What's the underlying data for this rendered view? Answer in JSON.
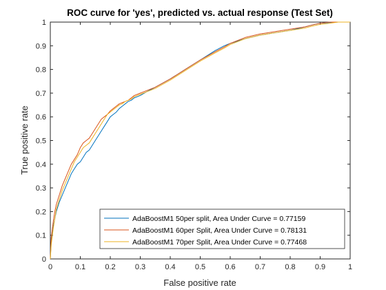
{
  "chart_data": {
    "type": "line",
    "title": "ROC curve for 'yes', predicted vs. actual response (Test Set)",
    "xlabel": "False positive rate",
    "ylabel": "True positive rate",
    "xlim": [
      0,
      1
    ],
    "ylim": [
      0,
      1
    ],
    "xticks": [
      "0",
      "0.1",
      "0.2",
      "0.3",
      "0.4",
      "0.5",
      "0.6",
      "0.7",
      "0.8",
      "0.9",
      "1"
    ],
    "yticks": [
      "0",
      "0.1",
      "0.2",
      "0.3",
      "0.4",
      "0.5",
      "0.6",
      "0.7",
      "0.8",
      "0.9",
      "1"
    ],
    "grid": false,
    "legend_position": "bottom-right",
    "series": [
      {
        "name": "AdaBoostM1 50per split, Area Under Curve =  0.77159",
        "color": "#0072BD",
        "x": [
          0,
          0.003,
          0.006,
          0.01,
          0.015,
          0.02,
          0.03,
          0.04,
          0.05,
          0.06,
          0.07,
          0.08,
          0.09,
          0.1,
          0.11,
          0.12,
          0.13,
          0.14,
          0.15,
          0.16,
          0.17,
          0.18,
          0.19,
          0.2,
          0.21,
          0.22,
          0.23,
          0.24,
          0.25,
          0.26,
          0.27,
          0.28,
          0.29,
          0.3,
          0.32,
          0.35,
          0.4,
          0.45,
          0.5,
          0.55,
          0.58,
          0.6,
          0.65,
          0.7,
          0.75,
          0.8,
          0.85,
          0.88,
          0.9,
          0.93,
          0.96,
          1.0
        ],
        "y": [
          0,
          0.07,
          0.1,
          0.14,
          0.17,
          0.2,
          0.24,
          0.27,
          0.3,
          0.33,
          0.36,
          0.38,
          0.4,
          0.41,
          0.43,
          0.45,
          0.46,
          0.48,
          0.5,
          0.52,
          0.54,
          0.56,
          0.58,
          0.6,
          0.61,
          0.62,
          0.635,
          0.645,
          0.655,
          0.665,
          0.67,
          0.68,
          0.685,
          0.69,
          0.705,
          0.725,
          0.76,
          0.8,
          0.84,
          0.88,
          0.9,
          0.91,
          0.93,
          0.945,
          0.955,
          0.965,
          0.98,
          0.99,
          0.995,
          0.998,
          1.0,
          1.0
        ]
      },
      {
        "name": "AdaBoostM1 60per Split, Area Under Curve =  0.78131",
        "color": "#D95319",
        "x": [
          0,
          0.003,
          0.006,
          0.01,
          0.015,
          0.02,
          0.03,
          0.04,
          0.05,
          0.06,
          0.07,
          0.08,
          0.09,
          0.1,
          0.11,
          0.12,
          0.13,
          0.14,
          0.15,
          0.16,
          0.17,
          0.18,
          0.19,
          0.2,
          0.21,
          0.22,
          0.23,
          0.24,
          0.25,
          0.26,
          0.27,
          0.28,
          0.29,
          0.3,
          0.32,
          0.35,
          0.4,
          0.45,
          0.5,
          0.55,
          0.58,
          0.6,
          0.65,
          0.7,
          0.75,
          0.8,
          0.85,
          0.88,
          0.9,
          0.93,
          0.96,
          1.0
        ],
        "y": [
          0,
          0.09,
          0.12,
          0.16,
          0.2,
          0.23,
          0.27,
          0.31,
          0.34,
          0.37,
          0.4,
          0.42,
          0.44,
          0.47,
          0.49,
          0.5,
          0.51,
          0.53,
          0.55,
          0.57,
          0.59,
          0.6,
          0.61,
          0.625,
          0.635,
          0.645,
          0.655,
          0.66,
          0.665,
          0.67,
          0.68,
          0.69,
          0.695,
          0.7,
          0.71,
          0.725,
          0.76,
          0.8,
          0.84,
          0.875,
          0.895,
          0.91,
          0.935,
          0.95,
          0.96,
          0.97,
          0.98,
          0.99,
          0.995,
          1.0,
          1.0,
          1.0
        ]
      },
      {
        "name": "AdaBoostM1 70per Split, Area Under Curve =  0.77468",
        "color": "#EDB120",
        "x": [
          0,
          0.003,
          0.006,
          0.01,
          0.015,
          0.02,
          0.03,
          0.04,
          0.05,
          0.06,
          0.07,
          0.08,
          0.09,
          0.1,
          0.11,
          0.12,
          0.13,
          0.14,
          0.15,
          0.16,
          0.17,
          0.18,
          0.19,
          0.2,
          0.21,
          0.22,
          0.23,
          0.24,
          0.25,
          0.26,
          0.27,
          0.28,
          0.29,
          0.3,
          0.32,
          0.35,
          0.4,
          0.45,
          0.5,
          0.55,
          0.58,
          0.6,
          0.65,
          0.7,
          0.75,
          0.8,
          0.85,
          0.88,
          0.9,
          0.93,
          0.96,
          1.0
        ],
        "y": [
          0,
          0.06,
          0.09,
          0.13,
          0.17,
          0.21,
          0.25,
          0.29,
          0.32,
          0.35,
          0.38,
          0.41,
          0.43,
          0.45,
          0.47,
          0.48,
          0.49,
          0.51,
          0.53,
          0.55,
          0.57,
          0.59,
          0.61,
          0.62,
          0.63,
          0.64,
          0.65,
          0.655,
          0.665,
          0.67,
          0.675,
          0.685,
          0.69,
          0.695,
          0.705,
          0.72,
          0.755,
          0.795,
          0.835,
          0.87,
          0.89,
          0.905,
          0.93,
          0.945,
          0.955,
          0.965,
          0.975,
          0.985,
          0.99,
          0.995,
          1.0,
          1.0
        ]
      }
    ]
  }
}
